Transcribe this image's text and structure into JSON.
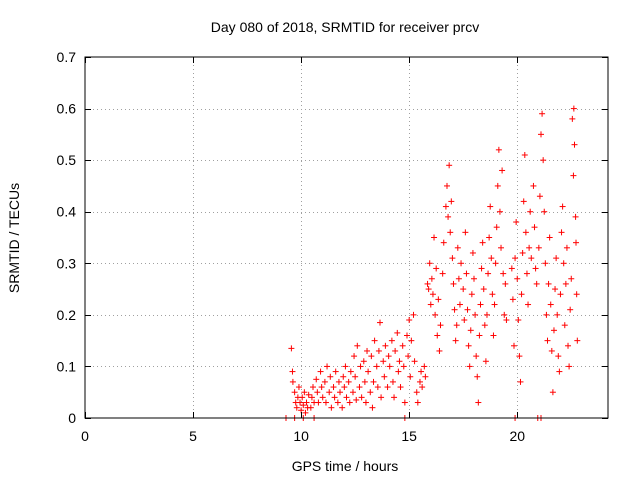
{
  "chart_data": {
    "type": "scatter",
    "title": "Day 080 of 2018, SRMTID for receiver prcv",
    "xlabel": "GPS time / hours",
    "ylabel": "SRMTID / TECUs",
    "xlim": [
      0,
      24.2
    ],
    "ylim": [
      0,
      0.7
    ],
    "x_ticks": [
      0,
      5,
      10,
      15,
      20
    ],
    "x_tick_labels": [
      "0",
      "5",
      "10",
      "15",
      "20"
    ],
    "y_ticks": [
      0,
      0.1,
      0.2,
      0.3,
      0.4,
      0.5,
      0.6,
      0.7
    ],
    "y_tick_labels": [
      "0",
      "0.1",
      "0.2",
      "0.3",
      "0.4",
      "0.5",
      "0.6",
      "0.7"
    ],
    "grid": true,
    "marker": "+",
    "series": [
      {
        "name": "SRMTID",
        "color": "#ff0000",
        "points": [
          [
            9.55,
            0.135
          ],
          [
            9.6,
            0.09
          ],
          [
            9.62,
            0.07
          ],
          [
            9.7,
            0.05
          ],
          [
            9.75,
            0.03
          ],
          [
            9.8,
            0.02
          ],
          [
            9.85,
            0.04
          ],
          [
            9.9,
            0.06
          ],
          [
            9.95,
            0.03
          ],
          [
            10.0,
            0.015
          ],
          [
            10.05,
            0.04
          ],
          [
            10.1,
            0.025
          ],
          [
            10.15,
            0.05
          ],
          [
            10.2,
            0.01
          ],
          [
            10.25,
            0.03
          ],
          [
            10.3,
            0.02
          ],
          [
            10.35,
            0.045
          ],
          [
            10.45,
            0.02
          ],
          [
            10.5,
            0.04
          ],
          [
            10.55,
            0.06
          ],
          [
            10.6,
            0.03
          ],
          [
            10.7,
            0.075
          ],
          [
            10.75,
            0.05
          ],
          [
            10.8,
            0.03
          ],
          [
            10.9,
            0.09
          ],
          [
            10.95,
            0.06
          ],
          [
            11.0,
            0.04
          ],
          [
            11.1,
            0.07
          ],
          [
            11.15,
            0.03
          ],
          [
            11.2,
            0.1
          ],
          [
            11.3,
            0.05
          ],
          [
            11.35,
            0.08
          ],
          [
            11.4,
            0.02
          ],
          [
            11.5,
            0.06
          ],
          [
            11.55,
            0.04
          ],
          [
            11.6,
            0.09
          ],
          [
            11.7,
            0.03
          ],
          [
            11.75,
            0.07
          ],
          [
            11.8,
            0.05
          ],
          [
            11.9,
            0.02
          ],
          [
            11.95,
            0.08
          ],
          [
            12.0,
            0.06
          ],
          [
            12.05,
            0.1
          ],
          [
            12.1,
            0.04
          ],
          [
            12.2,
            0.07
          ],
          [
            12.25,
            0.03
          ],
          [
            12.3,
            0.09
          ],
          [
            12.4,
            0.05
          ],
          [
            12.45,
            0.12
          ],
          [
            12.5,
            0.08
          ],
          [
            12.55,
            0.035
          ],
          [
            12.6,
            0.14
          ],
          [
            12.7,
            0.06
          ],
          [
            12.75,
            0.1
          ],
          [
            12.8,
            0.04
          ],
          [
            12.9,
            0.11
          ],
          [
            12.95,
            0.07
          ],
          [
            13.0,
            0.03
          ],
          [
            13.05,
            0.13
          ],
          [
            13.1,
            0.09
          ],
          [
            13.2,
            0.05
          ],
          [
            13.25,
            0.12
          ],
          [
            13.3,
            0.02
          ],
          [
            13.35,
            0.07
          ],
          [
            13.4,
            0.15
          ],
          [
            13.5,
            0.1
          ],
          [
            13.55,
            0.06
          ],
          [
            13.6,
            0.13
          ],
          [
            13.65,
            0.185
          ],
          [
            13.7,
            0.04
          ],
          [
            13.8,
            0.11
          ],
          [
            13.85,
            0.08
          ],
          [
            13.9,
            0.14
          ],
          [
            14.0,
            0.06
          ],
          [
            14.05,
            0.12
          ],
          [
            14.1,
            0.1
          ],
          [
            14.2,
            0.15
          ],
          [
            14.25,
            0.07
          ],
          [
            14.3,
            0.04
          ],
          [
            14.35,
            0.13
          ],
          [
            14.45,
            0.165
          ],
          [
            14.5,
            0.09
          ],
          [
            14.55,
            0.11
          ],
          [
            14.6,
            0.06
          ],
          [
            14.7,
            0.14
          ],
          [
            14.75,
            0.1
          ],
          [
            14.8,
            0.03
          ],
          [
            14.9,
            0.16
          ],
          [
            14.95,
            0.12
          ],
          [
            15.0,
            0.19
          ],
          [
            15.05,
            0.08
          ],
          [
            15.1,
            0.15
          ],
          [
            15.2,
            0.2
          ],
          [
            15.25,
            0.11
          ],
          [
            15.35,
            0.05
          ],
          [
            15.4,
            0.03
          ],
          [
            15.5,
            0.07
          ],
          [
            15.55,
            0.09
          ],
          [
            15.6,
            0.06
          ],
          [
            15.7,
            0.1
          ],
          [
            15.75,
            0.08
          ],
          [
            15.85,
            0.26
          ],
          [
            15.9,
            0.25
          ],
          [
            15.95,
            0.3
          ],
          [
            16.0,
            0.22
          ],
          [
            16.05,
            0.27
          ],
          [
            16.1,
            0.24
          ],
          [
            16.15,
            0.35
          ],
          [
            16.2,
            0.2
          ],
          [
            16.25,
            0.29
          ],
          [
            16.3,
            0.16
          ],
          [
            16.35,
            0.23
          ],
          [
            16.4,
            0.13
          ],
          [
            16.45,
            0.18
          ],
          [
            16.55,
            0.28
          ],
          [
            16.6,
            0.34
          ],
          [
            16.7,
            0.41
          ],
          [
            16.75,
            0.45
          ],
          [
            16.8,
            0.39
          ],
          [
            16.85,
            0.49
          ],
          [
            16.9,
            0.36
          ],
          [
            16.95,
            0.42
          ],
          [
            17.0,
            0.31
          ],
          [
            17.05,
            0.26
          ],
          [
            17.1,
            0.21
          ],
          [
            17.15,
            0.15
          ],
          [
            17.2,
            0.18
          ],
          [
            17.25,
            0.33
          ],
          [
            17.3,
            0.27
          ],
          [
            17.35,
            0.22
          ],
          [
            17.4,
            0.3
          ],
          [
            17.5,
            0.25
          ],
          [
            17.55,
            0.19
          ],
          [
            17.6,
            0.36
          ],
          [
            17.65,
            0.28
          ],
          [
            17.7,
            0.21
          ],
          [
            17.75,
            0.14
          ],
          [
            17.8,
            0.1
          ],
          [
            17.85,
            0.17
          ],
          [
            17.9,
            0.24
          ],
          [
            17.95,
            0.32
          ],
          [
            18.0,
            0.27
          ],
          [
            18.05,
            0.2
          ],
          [
            18.1,
            0.12
          ],
          [
            18.15,
            0.08
          ],
          [
            18.2,
            0.03
          ],
          [
            18.25,
            0.16
          ],
          [
            18.3,
            0.22
          ],
          [
            18.35,
            0.29
          ],
          [
            18.4,
            0.34
          ],
          [
            18.45,
            0.25
          ],
          [
            18.5,
            0.18
          ],
          [
            18.55,
            0.11
          ],
          [
            18.6,
            0.2
          ],
          [
            18.65,
            0.28
          ],
          [
            18.7,
            0.35
          ],
          [
            18.75,
            0.41
          ],
          [
            18.8,
            0.31
          ],
          [
            18.85,
            0.24
          ],
          [
            18.9,
            0.16
          ],
          [
            18.95,
            0.22
          ],
          [
            19.0,
            0.3
          ],
          [
            19.05,
            0.37
          ],
          [
            19.1,
            0.45
          ],
          [
            19.15,
            0.52
          ],
          [
            19.2,
            0.4
          ],
          [
            19.25,
            0.33
          ],
          [
            19.3,
            0.48
          ],
          [
            19.35,
            0.28
          ],
          [
            19.4,
            0.2
          ],
          [
            19.45,
            0.26
          ],
          [
            19.5,
            0.19
          ],
          [
            19.75,
            0.29
          ],
          [
            19.8,
            0.23
          ],
          [
            19.85,
            0.14
          ],
          [
            19.9,
            0.31
          ],
          [
            19.95,
            0.38
          ],
          [
            20.0,
            0.27
          ],
          [
            20.05,
            0.19
          ],
          [
            20.1,
            0.12
          ],
          [
            20.15,
            0.07
          ],
          [
            20.2,
            0.24
          ],
          [
            20.25,
            0.32
          ],
          [
            20.3,
            0.42
          ],
          [
            20.35,
            0.51
          ],
          [
            20.4,
            0.36
          ],
          [
            20.45,
            0.28
          ],
          [
            20.5,
            0.22
          ],
          [
            20.55,
            0.33
          ],
          [
            20.6,
            0.4
          ],
          [
            20.65,
            0.31
          ],
          [
            20.75,
            0.45
          ],
          [
            20.8,
            0.37
          ],
          [
            20.85,
            0.29
          ],
          [
            20.9,
            0.26
          ],
          [
            21.0,
            0.33
          ],
          [
            21.05,
            0.43
          ],
          [
            21.1,
            0.55
          ],
          [
            21.15,
            0.59
          ],
          [
            21.2,
            0.5
          ],
          [
            21.25,
            0.4
          ],
          [
            21.3,
            0.3
          ],
          [
            21.35,
            0.2
          ],
          [
            21.4,
            0.15
          ],
          [
            21.45,
            0.26
          ],
          [
            21.5,
            0.35
          ],
          [
            21.55,
            0.22
          ],
          [
            21.6,
            0.13
          ],
          [
            21.65,
            0.05
          ],
          [
            21.7,
            0.17
          ],
          [
            21.75,
            0.25
          ],
          [
            21.8,
            0.31
          ],
          [
            21.85,
            0.2
          ],
          [
            21.9,
            0.12
          ],
          [
            21.95,
            0.09
          ],
          [
            22.0,
            0.24
          ],
          [
            22.05,
            0.36
          ],
          [
            22.1,
            0.41
          ],
          [
            22.15,
            0.3
          ],
          [
            22.2,
            0.18
          ],
          [
            22.25,
            0.26
          ],
          [
            22.3,
            0.33
          ],
          [
            22.35,
            0.14
          ],
          [
            22.4,
            0.1
          ],
          [
            22.45,
            0.21
          ],
          [
            22.5,
            0.27
          ],
          [
            22.55,
            0.58
          ],
          [
            22.6,
            0.47
          ],
          [
            22.62,
            0.6
          ],
          [
            22.65,
            0.53
          ],
          [
            22.7,
            0.39
          ],
          [
            22.72,
            0.34
          ],
          [
            22.75,
            0.24
          ],
          [
            22.78,
            0.15
          ],
          [
            9.3,
            0.0
          ],
          [
            9.7,
            0.0
          ],
          [
            10.1,
            0.0
          ],
          [
            10.6,
            0.0
          ],
          [
            14.8,
            0.0
          ],
          [
            19.9,
            0.0
          ],
          [
            20.95,
            0.0
          ],
          [
            21.1,
            0.0
          ]
        ]
      }
    ]
  }
}
